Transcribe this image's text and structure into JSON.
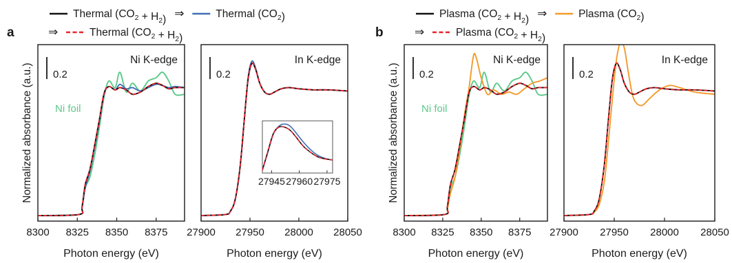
{
  "figure": {
    "panel_a_label": "a",
    "panel_b_label": "b",
    "legend_a": {
      "row1": [
        {
          "text": "Thermal (CO",
          "sub": "2",
          "tail": " + H",
          "sub2": "2",
          "tail2": ")",
          "color": "#111111",
          "dash": false
        },
        {
          "text": "Thermal (CO",
          "sub": "2",
          "tail": ")",
          "sub2": "",
          "tail2": "",
          "color": "#3f6fb5",
          "dash": false
        }
      ],
      "row2": [
        {
          "text": "Thermal (CO",
          "sub": "2",
          "tail": " + H",
          "sub2": "2",
          "tail2": ")",
          "color": "#e8232a",
          "dash": true
        }
      ],
      "arrow": "⇒"
    },
    "legend_b": {
      "row1": [
        {
          "text": "Plasma (CO",
          "sub": "2",
          "tail": " + H",
          "sub2": "2",
          "tail2": ")",
          "color": "#111111",
          "dash": false
        },
        {
          "text": "Plasma (CO",
          "sub": "2",
          "tail": ")",
          "sub2": "",
          "tail2": "",
          "color": "#f39a2b",
          "dash": false
        }
      ],
      "row2": [
        {
          "text": "Plasma (CO",
          "sub": "2",
          "tail": " + H",
          "sub2": "2",
          "tail2": ")",
          "color": "#e8232a",
          "dash": true
        }
      ],
      "arrow": "⇒"
    },
    "ylabel": "Normalized absorbance (a.u.)",
    "scale_bar_label": "0.2",
    "ni_foil_label": "Ni foil",
    "colors": {
      "black": "#111111",
      "blue": "#3f6fb5",
      "red": "#e8232a",
      "green": "#5cc98a",
      "orange": "#f39a2b"
    }
  },
  "chart_data": [
    {
      "type": "line",
      "panel": "a",
      "edge_label": "Ni K-edge",
      "xlabel": "Photon energy (eV)",
      "xlim": [
        8300,
        8393
      ],
      "xticks": [
        8300,
        8325,
        8350,
        8375
      ],
      "ylim": [
        -0.05,
        1.55
      ],
      "series": [
        {
          "key": "ni_foil",
          "color": "#5cc98a",
          "dash": false,
          "x": [
            8300,
            8326,
            8328,
            8330,
            8333,
            8336,
            8339,
            8342,
            8345,
            8349,
            8352,
            8356,
            8360,
            8365,
            8370,
            8375,
            8379,
            8383,
            8387,
            8393
          ],
          "y": [
            0.0,
            0.01,
            0.07,
            0.25,
            0.35,
            0.55,
            0.8,
            1.08,
            1.22,
            1.16,
            1.3,
            1.12,
            1.2,
            1.13,
            1.22,
            1.25,
            1.3,
            1.22,
            1.1,
            1.1
          ]
        },
        {
          "key": "thermal_co2",
          "color": "#3f6fb5",
          "dash": false,
          "x": [
            8300,
            8326,
            8328,
            8330,
            8333,
            8336,
            8339,
            8342,
            8345,
            8349,
            8352,
            8356,
            8360,
            8365,
            8370,
            8375,
            8379,
            8383,
            8387,
            8393
          ],
          "y": [
            0.0,
            0.01,
            0.07,
            0.25,
            0.4,
            0.62,
            0.85,
            1.1,
            1.17,
            1.14,
            1.19,
            1.15,
            1.16,
            1.13,
            1.16,
            1.19,
            1.18,
            1.16,
            1.17,
            1.16
          ]
        },
        {
          "key": "thermal_co2_h2",
          "color": "#111111",
          "dash": false,
          "x": [
            8300,
            8326,
            8328,
            8330,
            8333,
            8336,
            8339,
            8342,
            8345,
            8349,
            8352,
            8356,
            8360,
            8365,
            8370,
            8375,
            8379,
            8383,
            8387,
            8393
          ],
          "y": [
            0.0,
            0.01,
            0.08,
            0.28,
            0.42,
            0.64,
            0.87,
            1.11,
            1.17,
            1.14,
            1.16,
            1.14,
            1.1,
            1.12,
            1.17,
            1.2,
            1.18,
            1.15,
            1.16,
            1.16
          ]
        },
        {
          "key": "thermal_co2_h2_again",
          "color": "#e8232a",
          "dash": true,
          "x": [
            8300,
            8326,
            8328,
            8330,
            8333,
            8336,
            8339,
            8342,
            8345,
            8349,
            8352,
            8356,
            8360,
            8365,
            8370,
            8375,
            8379,
            8383,
            8387,
            8393
          ],
          "y": [
            0.0,
            0.01,
            0.08,
            0.28,
            0.42,
            0.64,
            0.87,
            1.11,
            1.17,
            1.14,
            1.16,
            1.14,
            1.1,
            1.12,
            1.17,
            1.2,
            1.18,
            1.15,
            1.16,
            1.16
          ]
        }
      ]
    },
    {
      "type": "line",
      "panel": "a",
      "edge_label": "In K-edge",
      "xlabel": "Photon energy (eV)",
      "xlim": [
        27900,
        28050
      ],
      "xticks": [
        27900,
        27950,
        28000,
        28050
      ],
      "ylim": [
        -0.05,
        1.55
      ],
      "series": [
        {
          "key": "thermal_co2",
          "color": "#3f6fb5",
          "dash": false,
          "x": [
            27900,
            27925,
            27930,
            27935,
            27940,
            27944,
            27948,
            27952,
            27956,
            27960,
            27965,
            27970,
            27975,
            27982,
            27990,
            28000,
            28015,
            28030,
            28050
          ],
          "y": [
            0.0,
            0.01,
            0.04,
            0.15,
            0.45,
            0.85,
            1.25,
            1.4,
            1.33,
            1.2,
            1.12,
            1.1,
            1.12,
            1.15,
            1.16,
            1.15,
            1.14,
            1.14,
            1.13
          ]
        },
        {
          "key": "thermal_co2_h2",
          "color": "#111111",
          "dash": false,
          "x": [
            27900,
            27925,
            27930,
            27935,
            27940,
            27944,
            27948,
            27952,
            27956,
            27960,
            27965,
            27970,
            27975,
            27982,
            27990,
            28000,
            28015,
            28030,
            28050
          ],
          "y": [
            0.0,
            0.01,
            0.04,
            0.15,
            0.45,
            0.85,
            1.23,
            1.38,
            1.32,
            1.2,
            1.12,
            1.1,
            1.12,
            1.15,
            1.16,
            1.15,
            1.14,
            1.14,
            1.13
          ]
        },
        {
          "key": "thermal_co2_h2_again",
          "color": "#e8232a",
          "dash": true,
          "x": [
            27900,
            27925,
            27930,
            27935,
            27940,
            27944,
            27948,
            27952,
            27956,
            27960,
            27965,
            27970,
            27975,
            27982,
            27990,
            28000,
            28015,
            28030,
            28050
          ],
          "y": [
            0.0,
            0.01,
            0.04,
            0.15,
            0.45,
            0.85,
            1.23,
            1.38,
            1.32,
            1.2,
            1.12,
            1.1,
            1.12,
            1.15,
            1.16,
            1.15,
            1.14,
            1.14,
            1.13
          ]
        }
      ],
      "inset": {
        "xlim": [
          27940,
          27978
        ],
        "xticks": [
          27945,
          27960,
          27975
        ],
        "ylim": [
          0.0,
          1.0
        ],
        "series": [
          {
            "key": "thermal_co2",
            "color": "#3f6fb5",
            "dash": false,
            "x": [
              27940,
              27943,
              27946,
              27949,
              27952,
              27955,
              27958,
              27962,
              27966,
              27970,
              27974,
              27978
            ],
            "y": [
              0.05,
              0.4,
              0.75,
              0.9,
              0.94,
              0.9,
              0.78,
              0.6,
              0.45,
              0.34,
              0.28,
              0.25
            ]
          },
          {
            "key": "thermal_co2_h2",
            "color": "#111111",
            "dash": false,
            "x": [
              27940,
              27943,
              27946,
              27949,
              27952,
              27955,
              27958,
              27962,
              27966,
              27970,
              27974,
              27978
            ],
            "y": [
              0.05,
              0.42,
              0.76,
              0.88,
              0.88,
              0.82,
              0.7,
              0.52,
              0.4,
              0.31,
              0.27,
              0.25
            ]
          },
          {
            "key": "thermal_co2_h2_again",
            "color": "#e8232a",
            "dash": true,
            "x": [
              27940,
              27943,
              27946,
              27949,
              27952,
              27955,
              27958,
              27962,
              27966,
              27970,
              27974,
              27978
            ],
            "y": [
              0.05,
              0.42,
              0.76,
              0.88,
              0.88,
              0.82,
              0.7,
              0.52,
              0.4,
              0.31,
              0.27,
              0.25
            ]
          }
        ]
      }
    },
    {
      "type": "line",
      "panel": "b",
      "edge_label": "Ni K-edge",
      "xlabel": "Photon energy (eV)",
      "xlim": [
        8300,
        8393
      ],
      "xticks": [
        8300,
        8325,
        8350,
        8375
      ],
      "ylim": [
        -0.05,
        1.55
      ],
      "series": [
        {
          "key": "ni_foil",
          "color": "#5cc98a",
          "dash": false,
          "x": [
            8300,
            8326,
            8328,
            8330,
            8333,
            8336,
            8339,
            8342,
            8345,
            8349,
            8352,
            8356,
            8360,
            8365,
            8370,
            8375,
            8379,
            8383,
            8387,
            8393
          ],
          "y": [
            0.0,
            0.01,
            0.07,
            0.25,
            0.35,
            0.55,
            0.8,
            1.08,
            1.22,
            1.16,
            1.3,
            1.12,
            1.2,
            1.13,
            1.22,
            1.25,
            1.3,
            1.22,
            1.1,
            1.1
          ]
        },
        {
          "key": "plasma_co2",
          "color": "#f39a2b",
          "dash": false,
          "x": [
            8300,
            8326,
            8328,
            8330,
            8333,
            8336,
            8339,
            8342,
            8345,
            8347,
            8350,
            8354,
            8358,
            8363,
            8368,
            8373,
            8378,
            8383,
            8388,
            8393
          ],
          "y": [
            0.0,
            0.01,
            0.06,
            0.2,
            0.35,
            0.6,
            0.9,
            1.15,
            1.45,
            1.42,
            1.25,
            1.1,
            1.14,
            1.1,
            1.12,
            1.1,
            1.15,
            1.2,
            1.22,
            1.25
          ]
        },
        {
          "key": "plasma_co2_h2",
          "color": "#111111",
          "dash": false,
          "x": [
            8300,
            8326,
            8328,
            8330,
            8333,
            8336,
            8339,
            8342,
            8345,
            8349,
            8352,
            8356,
            8360,
            8365,
            8370,
            8375,
            8379,
            8383,
            8387,
            8393
          ],
          "y": [
            0.0,
            0.01,
            0.08,
            0.28,
            0.42,
            0.64,
            0.87,
            1.11,
            1.17,
            1.14,
            1.16,
            1.14,
            1.1,
            1.12,
            1.17,
            1.2,
            1.18,
            1.15,
            1.16,
            1.16
          ]
        },
        {
          "key": "plasma_co2_h2_again",
          "color": "#e8232a",
          "dash": true,
          "x": [
            8300,
            8326,
            8328,
            8330,
            8333,
            8336,
            8339,
            8342,
            8345,
            8349,
            8352,
            8356,
            8360,
            8365,
            8370,
            8375,
            8379,
            8383,
            8387,
            8393
          ],
          "y": [
            0.0,
            0.01,
            0.08,
            0.28,
            0.42,
            0.64,
            0.87,
            1.11,
            1.17,
            1.14,
            1.16,
            1.14,
            1.1,
            1.12,
            1.17,
            1.2,
            1.18,
            1.15,
            1.16,
            1.16
          ]
        }
      ]
    },
    {
      "type": "line",
      "panel": "b",
      "edge_label": "In K-edge",
      "xlabel": "Photon energy (eV)",
      "xlim": [
        27900,
        28050
      ],
      "xticks": [
        27900,
        27950,
        28000,
        28050
      ],
      "ylim": [
        -0.05,
        1.55
      ],
      "series": [
        {
          "key": "plasma_co2",
          "color": "#f39a2b",
          "dash": false,
          "x": [
            27900,
            27925,
            27930,
            27935,
            27940,
            27944,
            27948,
            27952,
            27956,
            27960,
            27964,
            27968,
            27972,
            27978,
            27985,
            27995,
            28005,
            28015,
            28030,
            28050
          ],
          "y": [
            0.0,
            0.01,
            0.03,
            0.1,
            0.3,
            0.65,
            1.05,
            1.4,
            1.57,
            1.52,
            1.3,
            1.1,
            1.02,
            1.0,
            1.06,
            1.14,
            1.18,
            1.16,
            1.12,
            1.1
          ]
        },
        {
          "key": "plasma_co2_h2",
          "color": "#111111",
          "dash": false,
          "x": [
            27900,
            27925,
            27930,
            27935,
            27940,
            27944,
            27948,
            27952,
            27956,
            27960,
            27965,
            27970,
            27975,
            27982,
            27990,
            28000,
            28015,
            28030,
            28050
          ],
          "y": [
            0.0,
            0.01,
            0.04,
            0.15,
            0.45,
            0.85,
            1.23,
            1.38,
            1.32,
            1.2,
            1.12,
            1.1,
            1.12,
            1.15,
            1.16,
            1.15,
            1.14,
            1.14,
            1.13
          ]
        },
        {
          "key": "plasma_co2_h2_again",
          "color": "#e8232a",
          "dash": true,
          "x": [
            27900,
            27925,
            27930,
            27935,
            27940,
            27944,
            27948,
            27952,
            27956,
            27960,
            27965,
            27970,
            27975,
            27982,
            27990,
            28000,
            28015,
            28030,
            28050
          ],
          "y": [
            0.0,
            0.01,
            0.04,
            0.15,
            0.45,
            0.85,
            1.23,
            1.38,
            1.32,
            1.2,
            1.12,
            1.1,
            1.12,
            1.15,
            1.16,
            1.15,
            1.14,
            1.14,
            1.13
          ]
        }
      ]
    }
  ]
}
